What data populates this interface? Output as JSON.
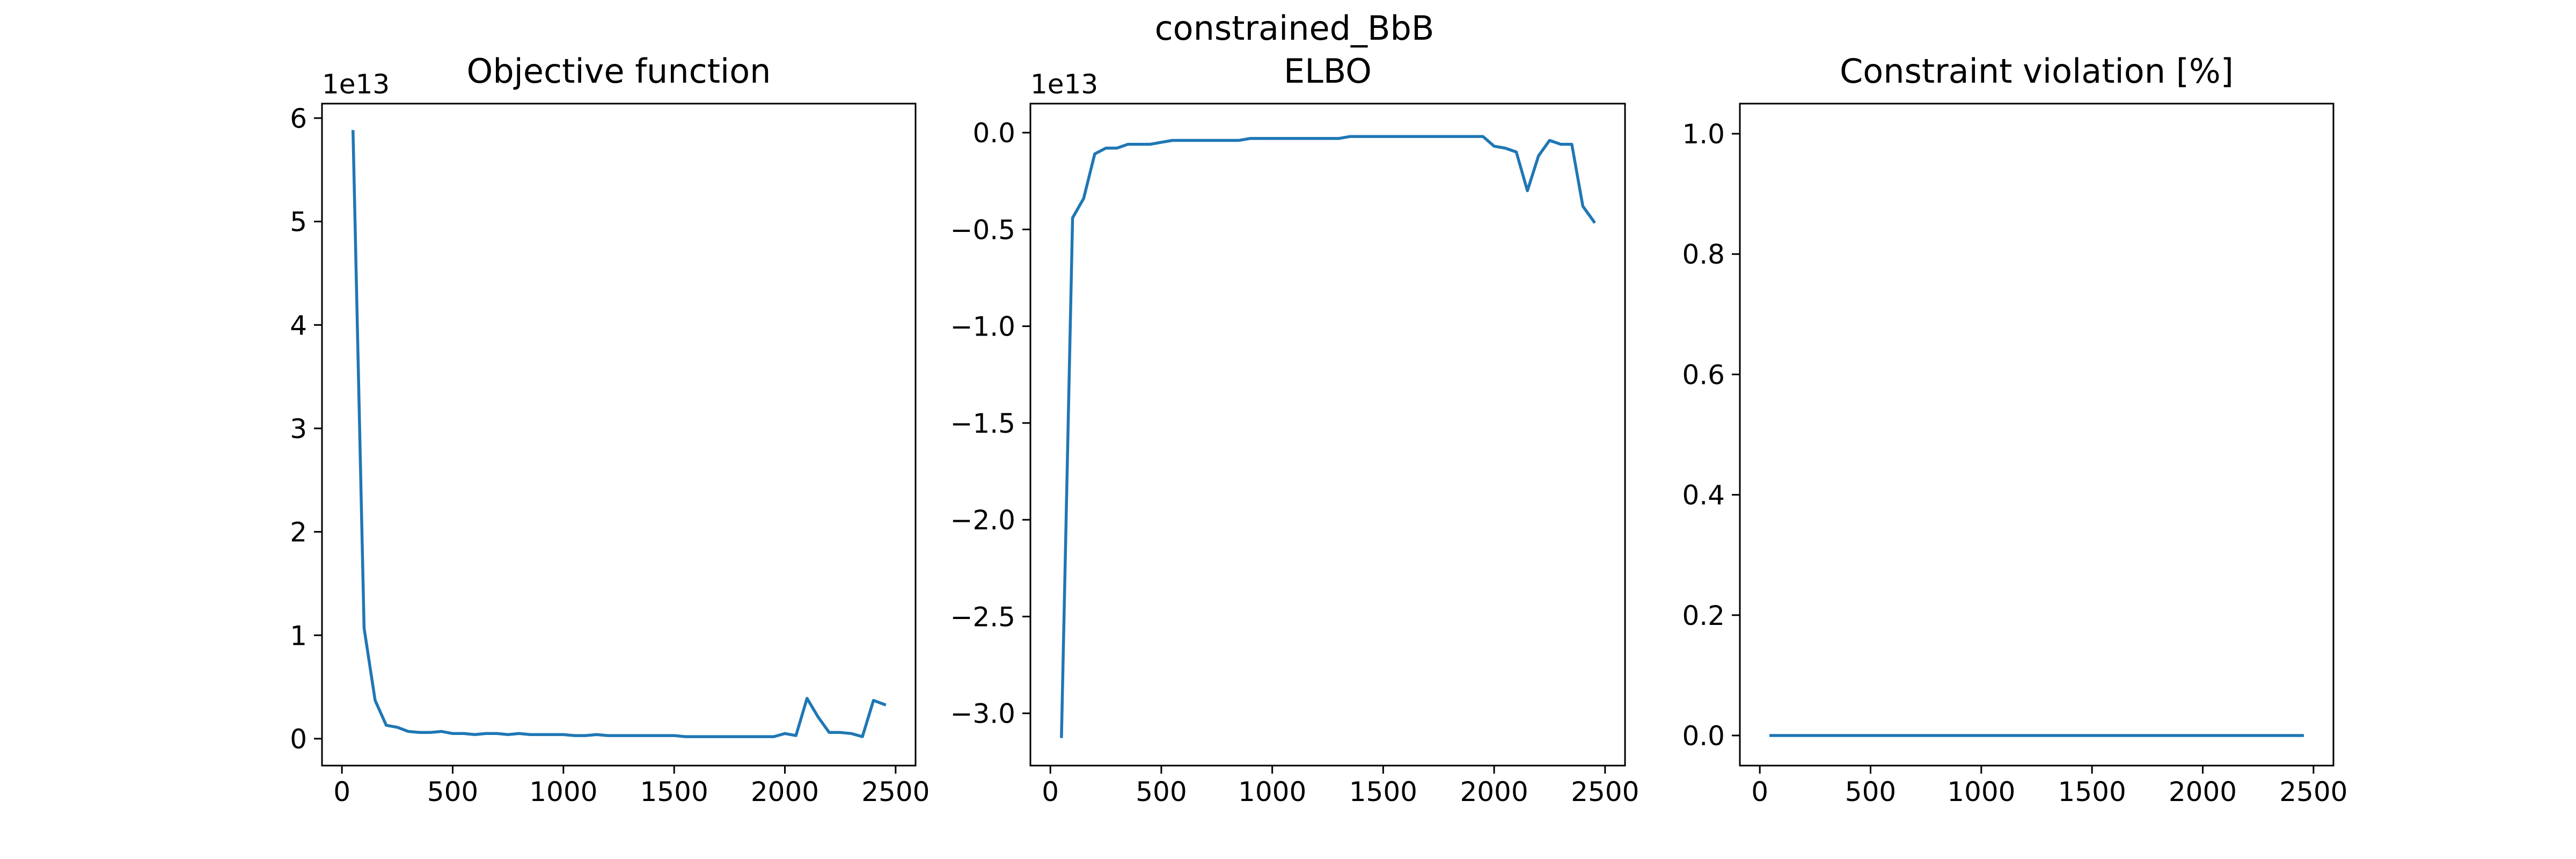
{
  "figure": {
    "suptitle": "constrained_BbB"
  },
  "chart_data": [
    {
      "type": "line",
      "title": "Objective function",
      "xlabel": "",
      "ylabel": "",
      "offset_label": "1e13",
      "xlim": [
        -90,
        2590
      ],
      "ylim": [
        -0.26,
        6.14
      ],
      "x_ticks": [
        0,
        500,
        1000,
        1500,
        2000,
        2500
      ],
      "x_tick_labels": [
        "0",
        "500",
        "1000",
        "1500",
        "2000",
        "2500"
      ],
      "y_ticks": [
        0,
        1,
        2,
        3,
        4,
        5,
        6
      ],
      "y_tick_labels": [
        "0",
        "1",
        "2",
        "3",
        "4",
        "5",
        "6"
      ],
      "grid": false,
      "color": "#1f77b4",
      "x": [
        50,
        100,
        150,
        200,
        250,
        300,
        350,
        400,
        450,
        500,
        550,
        600,
        650,
        700,
        750,
        800,
        850,
        900,
        950,
        1000,
        1050,
        1100,
        1150,
        1200,
        1250,
        1300,
        1350,
        1400,
        1450,
        1500,
        1550,
        1600,
        1650,
        1700,
        1750,
        1800,
        1850,
        1900,
        1950,
        2000,
        2050,
        2100,
        2150,
        2200,
        2250,
        2300,
        2350,
        2400,
        2450
      ],
      "y": [
        5.87,
        1.07,
        0.37,
        0.13,
        0.11,
        0.07,
        0.06,
        0.06,
        0.07,
        0.05,
        0.05,
        0.04,
        0.05,
        0.05,
        0.04,
        0.05,
        0.04,
        0.04,
        0.04,
        0.04,
        0.03,
        0.03,
        0.04,
        0.03,
        0.03,
        0.03,
        0.03,
        0.03,
        0.03,
        0.03,
        0.02,
        0.02,
        0.02,
        0.02,
        0.02,
        0.02,
        0.02,
        0.02,
        0.02,
        0.05,
        0.03,
        0.39,
        0.21,
        0.06,
        0.06,
        0.05,
        0.02,
        0.37,
        0.33
      ]
    },
    {
      "type": "line",
      "title": "ELBO",
      "xlabel": "",
      "ylabel": "",
      "offset_label": "1e13",
      "xlim": [
        -90,
        2590
      ],
      "ylim": [
        -3.27,
        0.15
      ],
      "x_ticks": [
        0,
        500,
        1000,
        1500,
        2000,
        2500
      ],
      "x_tick_labels": [
        "0",
        "500",
        "1000",
        "1500",
        "2000",
        "2500"
      ],
      "y_ticks": [
        0,
        -0.5,
        -1,
        -1.5,
        -2,
        -2.5,
        -3
      ],
      "y_tick_labels": [
        "0.0",
        "−0.5",
        "−1.0",
        "−1.5",
        "−2.0",
        "−2.5",
        "−3.0"
      ],
      "grid": false,
      "color": "#1f77b4",
      "x": [
        50,
        100,
        150,
        200,
        250,
        300,
        350,
        400,
        450,
        500,
        550,
        600,
        650,
        700,
        750,
        800,
        850,
        900,
        950,
        1000,
        1050,
        1100,
        1150,
        1200,
        1250,
        1300,
        1350,
        1400,
        1450,
        1500,
        1550,
        1600,
        1650,
        1700,
        1750,
        1800,
        1850,
        1900,
        1950,
        2000,
        2050,
        2100,
        2150,
        2200,
        2250,
        2300,
        2350,
        2400,
        2450
      ],
      "y": [
        -3.12,
        -0.44,
        -0.34,
        -0.11,
        -0.08,
        -0.08,
        -0.06,
        -0.06,
        -0.06,
        -0.05,
        -0.04,
        -0.04,
        -0.04,
        -0.04,
        -0.04,
        -0.04,
        -0.04,
        -0.03,
        -0.03,
        -0.03,
        -0.03,
        -0.03,
        -0.03,
        -0.03,
        -0.03,
        -0.03,
        -0.02,
        -0.02,
        -0.02,
        -0.02,
        -0.02,
        -0.02,
        -0.02,
        -0.02,
        -0.02,
        -0.02,
        -0.02,
        -0.02,
        -0.02,
        -0.07,
        -0.08,
        -0.1,
        -0.3,
        -0.12,
        -0.04,
        -0.06,
        -0.06,
        -0.38,
        -0.46
      ]
    },
    {
      "type": "line",
      "title": "Constraint violation [%]",
      "xlabel": "",
      "ylabel": "",
      "offset_label": "",
      "xlim": [
        -90,
        2590
      ],
      "ylim": [
        -0.05,
        1.05
      ],
      "x_ticks": [
        0,
        500,
        1000,
        1500,
        2000,
        2500
      ],
      "x_tick_labels": [
        "0",
        "500",
        "1000",
        "1500",
        "2000",
        "2500"
      ],
      "y_ticks": [
        0,
        0.2,
        0.4,
        0.6,
        0.8,
        1.0
      ],
      "y_tick_labels": [
        "0.0",
        "0.2",
        "0.4",
        "0.6",
        "0.8",
        "1.0"
      ],
      "grid": false,
      "color": "#1f77b4",
      "x": [
        50,
        2450
      ],
      "y": [
        0,
        0
      ]
    }
  ]
}
